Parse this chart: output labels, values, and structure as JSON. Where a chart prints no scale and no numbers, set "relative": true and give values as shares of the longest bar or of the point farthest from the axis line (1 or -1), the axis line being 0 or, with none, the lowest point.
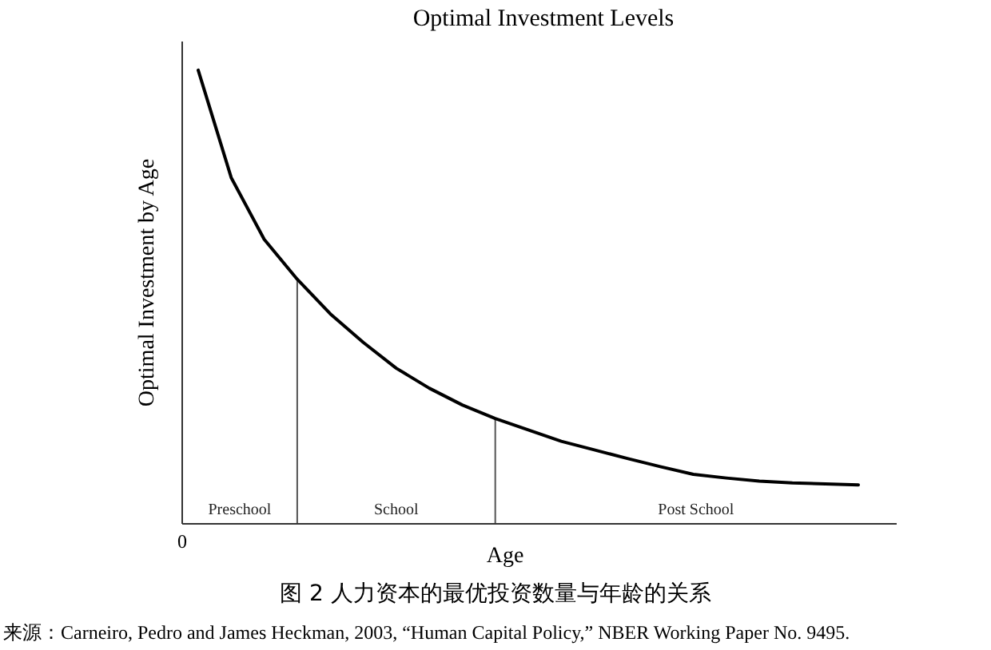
{
  "chart_data": {
    "type": "line",
    "title": "Optimal Investment Levels",
    "xlabel": "Age",
    "ylabel": "Optimal Investment by Age",
    "relative": true,
    "categories": [
      null,
      null,
      null,
      null,
      null,
      null,
      null,
      null,
      null,
      null,
      null,
      null,
      null,
      null,
      null,
      null,
      null,
      null,
      null,
      null,
      null
    ],
    "series": [
      {
        "color": "#000000",
        "values": [
          1.0,
          0.763,
          0.627,
          0.539,
          0.463,
          0.4,
          0.343,
          0.299,
          0.262,
          0.232,
          0.207,
          0.182,
          0.163,
          0.144,
          0.126,
          0.109,
          0.101,
          0.094,
          0.09,
          0.088,
          0.086
        ]
      }
    ],
    "annotations": [
      "图 2 人力资本的最优投资数量与年龄的关系",
      "来源：Carneiro, Pedro and James Heckman, 2003, “Human Capital Policy,” NBER Working Paper No. 9495.",
      "0",
      "Preschool",
      "School",
      "Post School"
    ]
  }
}
